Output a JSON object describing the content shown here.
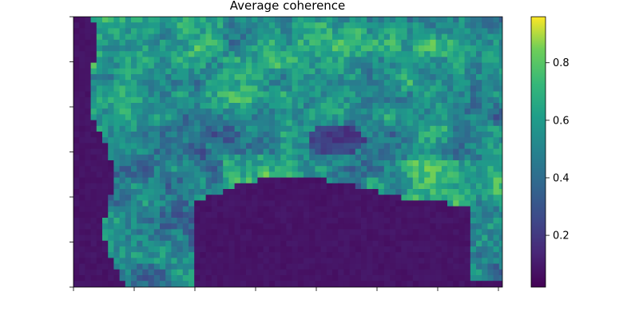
{
  "chart_data": {
    "type": "heatmap",
    "title": "Average coherence",
    "xlabel": "",
    "ylabel": "",
    "colormap": "viridis",
    "x_tick_count": 8,
    "y_tick_count": 7,
    "x_tick_labels_shown": false,
    "y_tick_labels_shown": false,
    "colorbar": {
      "range": [
        0.02,
        0.96
      ],
      "ticks": [
        0.2,
        0.4,
        0.6,
        0.8
      ],
      "tick_labels": [
        "0.2",
        "0.4",
        "0.6",
        "0.8"
      ]
    },
    "grid": false,
    "legend": "none",
    "colors": {
      "low": "#440154",
      "mid": "#21918c",
      "high": "#fde725"
    }
  }
}
